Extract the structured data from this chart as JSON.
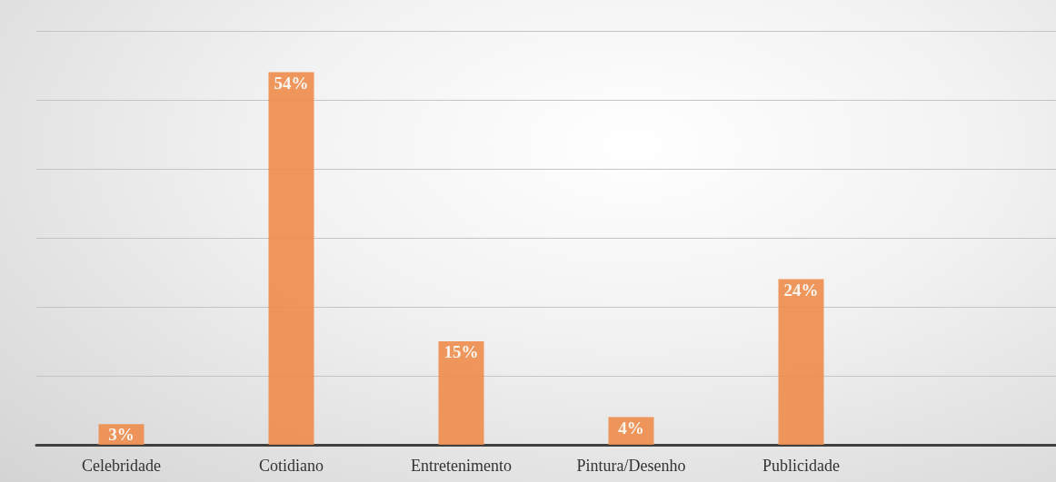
{
  "chart_data": {
    "type": "bar",
    "categories": [
      "Celebridade",
      "Cotidiano",
      "Entretenimento",
      "Pintura/Desenho",
      "Publicidade",
      null
    ],
    "values": [
      3,
      54,
      15,
      4,
      24,
      null
    ],
    "value_labels": [
      "3%",
      "54%",
      "15%",
      "4%",
      "24%",
      null
    ],
    "color": "#ee8c4c",
    "ylim": [
      0,
      60
    ],
    "yticks": [
      {
        "value": 0,
        "label": null
      },
      {
        "value": 10,
        "label": null
      },
      {
        "value": 20,
        "label": null
      },
      {
        "value": 30,
        "label": null
      },
      {
        "value": 40,
        "label": null
      },
      {
        "value": 50,
        "label": null
      },
      {
        "value": 60,
        "label": null
      }
    ],
    "tick_labels": "x",
    "grid": "y"
  }
}
